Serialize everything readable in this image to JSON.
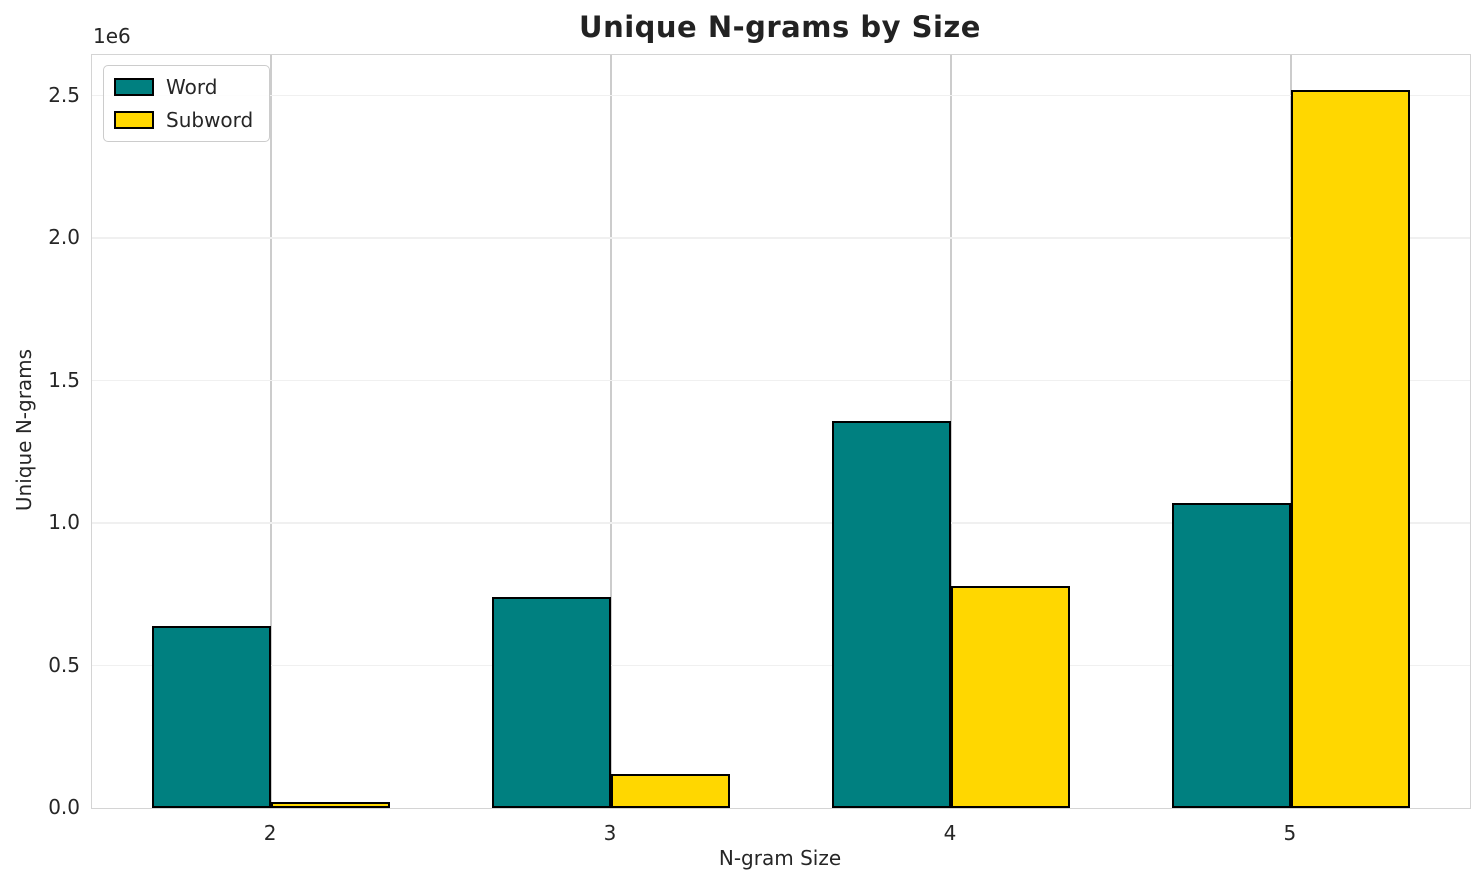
{
  "chart_data": {
    "type": "bar",
    "title": "Unique N-grams by Size",
    "xlabel": "N-gram Size",
    "ylabel": "Unique N-grams",
    "y_offset_text": "1e6",
    "categories": [
      "2",
      "3",
      "4",
      "5"
    ],
    "series": [
      {
        "name": "Word",
        "color": "#008080",
        "values": [
          640000,
          740000,
          1360000,
          1070000
        ]
      },
      {
        "name": "Subword",
        "color": "#FFD700",
        "values": [
          20000,
          120000,
          780000,
          2520000
        ]
      }
    ],
    "edge_color": "#000000",
    "bar_width": 0.35,
    "ylim": [
      0,
      2643000
    ],
    "y_ticks": [
      {
        "label": "0.0",
        "value": 0
      },
      {
        "label": "0.5",
        "value": 500000
      },
      {
        "label": "1.0",
        "value": 1000000
      },
      {
        "label": "1.5",
        "value": 1500000
      },
      {
        "label": "2.0",
        "value": 2000000
      },
      {
        "label": "2.5",
        "value": 2500000
      }
    ],
    "grid": true,
    "legend_position": "upper left"
  }
}
